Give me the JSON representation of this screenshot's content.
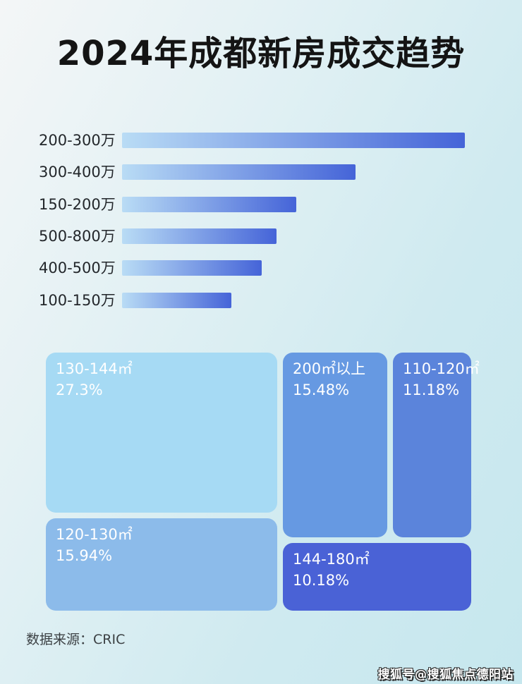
{
  "page": {
    "title": "2024年成都新房成交趋势",
    "source_label": "数据来源：CRIC",
    "watermark": "搜狐号@搜狐焦点德阳站"
  },
  "colors": {
    "background_stops": [
      "#f4f6f7",
      "#e3f1f4",
      "#cfeaf0",
      "#c6e7ee"
    ],
    "title_text": "#141414",
    "bar_label_text": "#23272b",
    "bar_gradient_start": "#b9dcf5",
    "bar_gradient_end": "#4564d8",
    "cell_text": "#ffffff",
    "source_text": "#3c4144",
    "watermark_fill": "#ffffff",
    "watermark_outline": "#2a2a2a"
  },
  "chart_data": [
    {
      "type": "bar",
      "orientation": "horizontal",
      "title": "2024年成都新房成交趋势",
      "categories": [
        "200-300万",
        "300-400万",
        "150-200万",
        "500-800万",
        "400-500万",
        "100-150万"
      ],
      "values_relative_to_longest": [
        1.0,
        0.681,
        0.508,
        0.451,
        0.407,
        0.319
      ],
      "value_labels_shown": false,
      "axes_shown": false,
      "grid": false,
      "legend": "none",
      "bar_color_gradient": [
        "#b9dcf5",
        "#4564d8"
      ]
    },
    {
      "type": "treemap",
      "title": "",
      "unit": "percent",
      "legend": "none",
      "items": [
        {
          "label": "130-144㎡",
          "percent_text": "27.3%",
          "value": 27.3,
          "color": "#a6daf4"
        },
        {
          "label": "200㎡以上",
          "percent_text": "15.48%",
          "value": 15.48,
          "color": "#6699e2"
        },
        {
          "label": "110-120㎡",
          "percent_text": "11.18%",
          "value": 11.18,
          "color": "#5b84db"
        },
        {
          "label": "120-130㎡",
          "percent_text": "15.94%",
          "value": 15.94,
          "color": "#8cbbea"
        },
        {
          "label": "144-180㎡",
          "percent_text": "10.18%",
          "value": 10.18,
          "color": "#4a62d6"
        }
      ]
    }
  ]
}
